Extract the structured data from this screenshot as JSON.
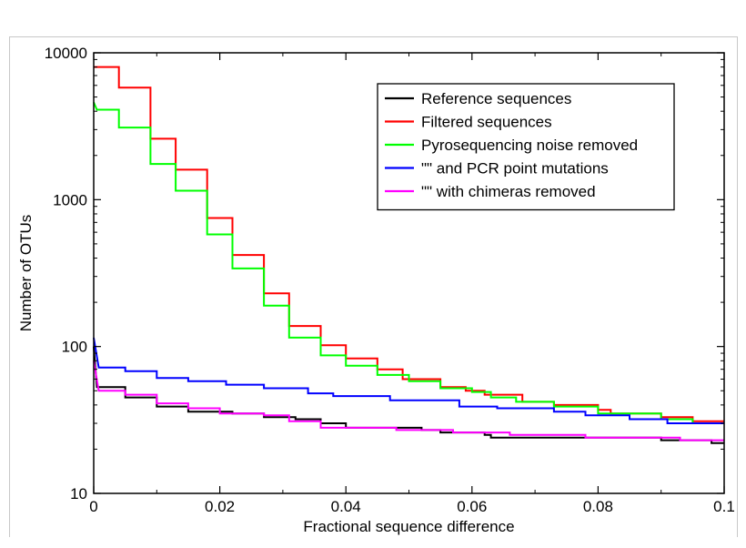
{
  "chart_data": {
    "type": "line",
    "title": "",
    "xlabel": "Fractional sequence difference",
    "ylabel": "Number of OTUs",
    "xlim": [
      0,
      0.1
    ],
    "ylim": [
      10,
      10000
    ],
    "yscale": "log",
    "x_ticks": [
      "0",
      "0.02",
      "0.04",
      "0.06",
      "0.08",
      "0.1"
    ],
    "y_ticks": [
      "10",
      "100",
      "1000",
      "10000"
    ],
    "grid": false,
    "legend_position": "top-right",
    "series": [
      {
        "name": "Reference sequences",
        "color": "#000000",
        "points": [
          [
            0,
            100
          ],
          [
            0.0005,
            53
          ],
          [
            0.005,
            53
          ],
          [
            0.005,
            45
          ],
          [
            0.01,
            45
          ],
          [
            0.01,
            39
          ],
          [
            0.015,
            39
          ],
          [
            0.015,
            36
          ],
          [
            0.022,
            36
          ],
          [
            0.022,
            35
          ],
          [
            0.027,
            35
          ],
          [
            0.027,
            33
          ],
          [
            0.032,
            33
          ],
          [
            0.032,
            32
          ],
          [
            0.036,
            32
          ],
          [
            0.036,
            30
          ],
          [
            0.04,
            30
          ],
          [
            0.04,
            28
          ],
          [
            0.052,
            28
          ],
          [
            0.052,
            27
          ],
          [
            0.055,
            27
          ],
          [
            0.055,
            26
          ],
          [
            0.062,
            26
          ],
          [
            0.062,
            25
          ],
          [
            0.063,
            25
          ],
          [
            0.063,
            24
          ],
          [
            0.082,
            24
          ],
          [
            0.082,
            24
          ],
          [
            0.09,
            24
          ],
          [
            0.09,
            23
          ],
          [
            0.098,
            23
          ],
          [
            0.098,
            22
          ],
          [
            0.1,
            22
          ]
        ]
      },
      {
        "name": "Filtered sequences",
        "color": "#ff0000",
        "points": [
          [
            0,
            8000
          ],
          [
            0.004,
            8000
          ],
          [
            0.004,
            5800
          ],
          [
            0.009,
            5800
          ],
          [
            0.009,
            2600
          ],
          [
            0.013,
            2600
          ],
          [
            0.013,
            1600
          ],
          [
            0.018,
            1600
          ],
          [
            0.018,
            750
          ],
          [
            0.022,
            750
          ],
          [
            0.022,
            420
          ],
          [
            0.027,
            420
          ],
          [
            0.027,
            230
          ],
          [
            0.031,
            230
          ],
          [
            0.031,
            138
          ],
          [
            0.036,
            138
          ],
          [
            0.036,
            102
          ],
          [
            0.04,
            102
          ],
          [
            0.04,
            83
          ],
          [
            0.045,
            83
          ],
          [
            0.045,
            70
          ],
          [
            0.049,
            70
          ],
          [
            0.049,
            60
          ],
          [
            0.055,
            60
          ],
          [
            0.055,
            53
          ],
          [
            0.059,
            53
          ],
          [
            0.059,
            50
          ],
          [
            0.062,
            50
          ],
          [
            0.062,
            47
          ],
          [
            0.068,
            47
          ],
          [
            0.068,
            42
          ],
          [
            0.073,
            42
          ],
          [
            0.073,
            40
          ],
          [
            0.08,
            40
          ],
          [
            0.08,
            37
          ],
          [
            0.082,
            37
          ],
          [
            0.082,
            35
          ],
          [
            0.09,
            35
          ],
          [
            0.09,
            33
          ],
          [
            0.095,
            33
          ],
          [
            0.095,
            31
          ],
          [
            0.1,
            31
          ]
        ]
      },
      {
        "name": "Pyrosequencing noise removed",
        "color": "#00ff00",
        "points": [
          [
            0,
            4600
          ],
          [
            0.0005,
            4100
          ],
          [
            0.004,
            4100
          ],
          [
            0.004,
            3100
          ],
          [
            0.009,
            3100
          ],
          [
            0.009,
            1750
          ],
          [
            0.013,
            1750
          ],
          [
            0.013,
            1150
          ],
          [
            0.018,
            1150
          ],
          [
            0.018,
            580
          ],
          [
            0.022,
            580
          ],
          [
            0.022,
            340
          ],
          [
            0.027,
            340
          ],
          [
            0.027,
            190
          ],
          [
            0.031,
            190
          ],
          [
            0.031,
            115
          ],
          [
            0.036,
            115
          ],
          [
            0.036,
            87
          ],
          [
            0.04,
            87
          ],
          [
            0.04,
            74
          ],
          [
            0.045,
            74
          ],
          [
            0.045,
            64
          ],
          [
            0.05,
            64
          ],
          [
            0.05,
            58
          ],
          [
            0.055,
            58
          ],
          [
            0.055,
            52
          ],
          [
            0.06,
            52
          ],
          [
            0.06,
            49
          ],
          [
            0.063,
            49
          ],
          [
            0.063,
            45
          ],
          [
            0.067,
            45
          ],
          [
            0.067,
            42
          ],
          [
            0.073,
            42
          ],
          [
            0.073,
            39
          ],
          [
            0.08,
            39
          ],
          [
            0.08,
            35
          ],
          [
            0.09,
            35
          ],
          [
            0.09,
            32
          ],
          [
            0.095,
            32
          ],
          [
            0.095,
            30
          ],
          [
            0.1,
            30
          ]
        ]
      },
      {
        "name": "\"\" and PCR point mutations",
        "color": "#0000ff",
        "points": [
          [
            0,
            115
          ],
          [
            0.0008,
            72
          ],
          [
            0.005,
            72
          ],
          [
            0.005,
            68
          ],
          [
            0.01,
            68
          ],
          [
            0.01,
            61
          ],
          [
            0.015,
            61
          ],
          [
            0.015,
            58
          ],
          [
            0.021,
            58
          ],
          [
            0.021,
            55
          ],
          [
            0.027,
            55
          ],
          [
            0.027,
            52
          ],
          [
            0.034,
            52
          ],
          [
            0.034,
            48
          ],
          [
            0.038,
            48
          ],
          [
            0.038,
            46
          ],
          [
            0.047,
            46
          ],
          [
            0.047,
            43
          ],
          [
            0.058,
            43
          ],
          [
            0.058,
            39
          ],
          [
            0.064,
            39
          ],
          [
            0.064,
            38
          ],
          [
            0.073,
            38
          ],
          [
            0.073,
            36
          ],
          [
            0.078,
            36
          ],
          [
            0.078,
            34
          ],
          [
            0.085,
            34
          ],
          [
            0.085,
            32
          ],
          [
            0.091,
            32
          ],
          [
            0.091,
            30
          ],
          [
            0.1,
            30
          ]
        ]
      },
      {
        "name": "\"\" with chimeras removed",
        "color": "#ff00ff",
        "points": [
          [
            0,
            80
          ],
          [
            0.0008,
            50
          ],
          [
            0.005,
            50
          ],
          [
            0.005,
            47
          ],
          [
            0.01,
            47
          ],
          [
            0.01,
            41
          ],
          [
            0.015,
            41
          ],
          [
            0.015,
            38
          ],
          [
            0.02,
            38
          ],
          [
            0.02,
            35
          ],
          [
            0.027,
            35
          ],
          [
            0.027,
            34
          ],
          [
            0.031,
            34
          ],
          [
            0.031,
            31
          ],
          [
            0.036,
            31
          ],
          [
            0.036,
            28
          ],
          [
            0.048,
            28
          ],
          [
            0.048,
            27
          ],
          [
            0.057,
            27
          ],
          [
            0.057,
            26
          ],
          [
            0.066,
            26
          ],
          [
            0.066,
            25
          ],
          [
            0.078,
            25
          ],
          [
            0.078,
            24
          ],
          [
            0.093,
            24
          ],
          [
            0.093,
            23
          ],
          [
            0.1,
            23
          ]
        ]
      }
    ]
  }
}
